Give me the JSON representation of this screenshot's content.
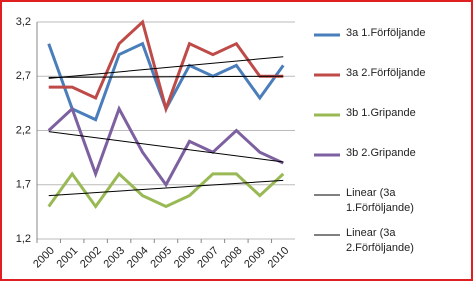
{
  "chart_data": {
    "type": "line",
    "categories": [
      "2000",
      "2001",
      "2002",
      "2003",
      "2004",
      "2005",
      "2006",
      "2007",
      "2008",
      "2009",
      "2010"
    ],
    "series": [
      {
        "name": "3a 1.Förföljande",
        "color": "#4a7ebb",
        "values": [
          3.0,
          2.4,
          2.3,
          2.9,
          3.0,
          2.4,
          2.8,
          2.7,
          2.8,
          2.5,
          2.8
        ]
      },
      {
        "name": "3a 2.Förföljande",
        "color": "#be4b48",
        "values": [
          2.6,
          2.6,
          2.5,
          3.0,
          3.2,
          2.4,
          3.0,
          2.9,
          3.0,
          2.7,
          2.7
        ]
      },
      {
        "name": "3b 1.Gripande",
        "color": "#98b954",
        "values": [
          1.5,
          1.8,
          1.5,
          1.8,
          1.6,
          1.5,
          1.6,
          1.8,
          1.8,
          1.6,
          1.8
        ]
      },
      {
        "name": "3b 2.Gripande",
        "color": "#7d60a0",
        "values": [
          2.2,
          2.4,
          1.8,
          2.4,
          2.0,
          1.7,
          2.1,
          2.0,
          2.2,
          2.0,
          1.9
        ]
      }
    ],
    "trendlines": [
      {
        "name": "Linear (3a 1.Förföljande)",
        "color": "#000000",
        "values": [
          2.69,
          2.7
        ]
      },
      {
        "name": "Linear (3a 2.Förföljande)",
        "color": "#000000",
        "values": [
          2.68,
          2.88
        ]
      },
      {
        "color": "#000000",
        "values": [
          2.19,
          1.91
        ]
      },
      {
        "color": "#000000",
        "values": [
          1.6,
          1.74
        ]
      }
    ],
    "ylim": [
      1.2,
      3.2
    ],
    "yticks": [
      {
        "value": 1.2,
        "label": "1,2"
      },
      {
        "value": 1.7,
        "label": "1,7"
      },
      {
        "value": 2.2,
        "label": "2,2"
      },
      {
        "value": 2.7,
        "label": "2,7"
      },
      {
        "value": 3.2,
        "label": "3,2"
      }
    ],
    "grid": true
  }
}
